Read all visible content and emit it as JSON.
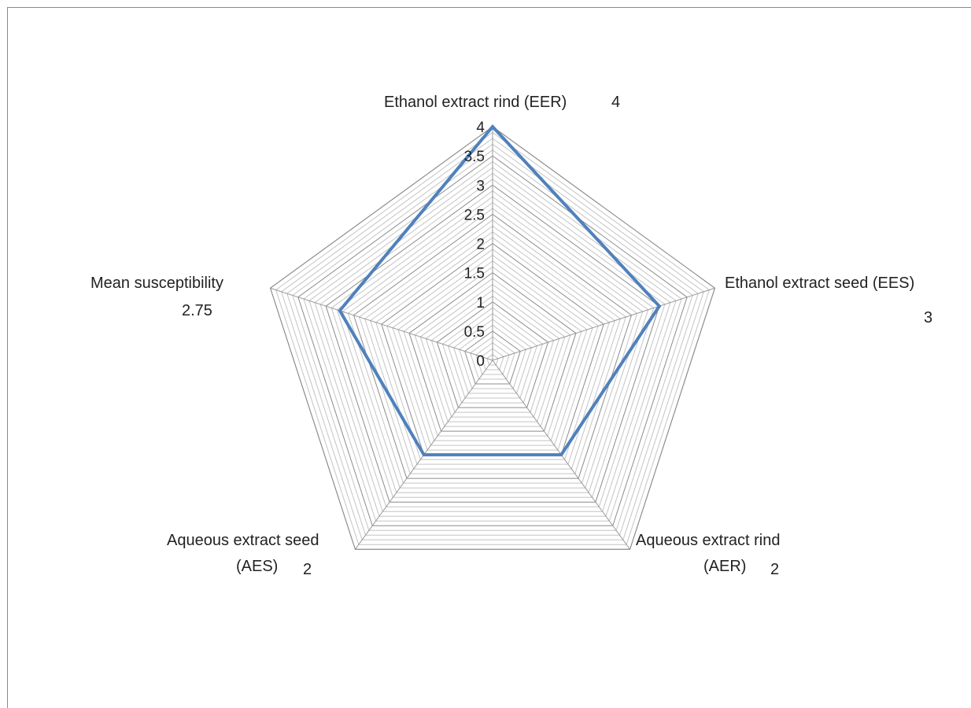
{
  "chart_data": {
    "type": "radar",
    "rmax": 4,
    "ticks": [
      "0",
      "0.5",
      "1",
      "1.5",
      "2",
      "2.5",
      "3",
      "3.5",
      "4"
    ],
    "tick_values": [
      0,
      0.5,
      1,
      1.5,
      2,
      2.5,
      3,
      3.5,
      4
    ],
    "categories": [
      {
        "label": "Ethanol extract rind (EER)",
        "label2": "",
        "value": 4,
        "value_text": "4"
      },
      {
        "label": "Ethanol extract seed (EES)",
        "label2": "",
        "value": 3,
        "value_text": "3"
      },
      {
        "label": "Aqueous extract  rind",
        "label2": "(AER)",
        "value": 2,
        "value_text": "2"
      },
      {
        "label": "Aqueous extract seed",
        "label2": "(AES)",
        "value": 2,
        "value_text": "2"
      },
      {
        "label": "Mean susceptibility",
        "label2": "",
        "value": 2.75,
        "value_text": "2.75"
      }
    ],
    "series_color": "#4F81BD",
    "grid_color": "#999999"
  }
}
